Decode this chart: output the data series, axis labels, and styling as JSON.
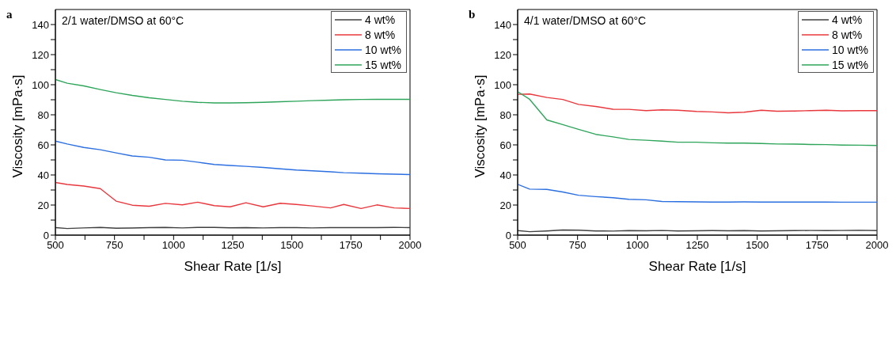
{
  "chart_data": [
    {
      "type": "line",
      "title": "a",
      "xlabel": "Shear Rate [1/s]",
      "ylabel": "Viscosity [mPa·s]",
      "annotations": [
        "2/1 water/DMSO at 60°C"
      ],
      "x": [
        500,
        550,
        620,
        690,
        757,
        825,
        897,
        965,
        1037,
        1102,
        1172,
        1239,
        1306,
        1379,
        1451,
        1519,
        1586,
        1664,
        1720,
        1793,
        1860,
        1933,
        2000
      ],
      "series": [
        {
          "name": "4 wt%",
          "color": "#404040",
          "values": [
            5.0,
            4.4,
            4.8,
            5.1,
            4.6,
            4.7,
            5.0,
            5.1,
            4.8,
            5.1,
            5.1,
            4.9,
            5.0,
            4.8,
            5.0,
            5.0,
            4.8,
            5.0,
            5.0,
            5.0,
            5.0,
            5.1,
            5.0
          ]
        },
        {
          "name": "8 wt%",
          "color": "#e8383d",
          "values": [
            35.0,
            33.7,
            32.6,
            30.9,
            22.6,
            19.9,
            19.2,
            21.1,
            20.1,
            21.9,
            19.6,
            18.8,
            21.5,
            18.8,
            21.2,
            20.4,
            19.4,
            18.1,
            20.4,
            17.7,
            20.1,
            18.1,
            17.7
          ]
        },
        {
          "name": "10 wt%",
          "color": "#2b6fe0",
          "values": [
            62.5,
            60.6,
            58.3,
            56.8,
            54.7,
            52.6,
            51.8,
            50.0,
            49.8,
            48.5,
            47.0,
            46.3,
            45.7,
            45.0,
            44.1,
            43.3,
            42.8,
            42.1,
            41.5,
            41.2,
            40.8,
            40.5,
            40.3
          ]
        },
        {
          "name": "15 wt%",
          "color": "#2ea55a",
          "values": [
            103.4,
            101.0,
            99.2,
            96.8,
            94.7,
            92.9,
            91.3,
            90.2,
            89.0,
            88.3,
            87.9,
            87.9,
            88.0,
            88.3,
            88.7,
            89.0,
            89.4,
            89.7,
            90.0,
            90.2,
            90.3,
            90.3,
            90.3
          ]
        }
      ],
      "xlim": [
        500,
        2000
      ],
      "xticks": [
        500,
        {
          "value": 625,
          "label": null
        },
        750,
        {
          "value": 875,
          "label": null
        },
        1000,
        {
          "value": 1125,
          "label": null
        },
        1250,
        {
          "value": 1375,
          "label": null
        },
        1500,
        {
          "value": 1625,
          "label": null
        },
        1750,
        {
          "value": 1875,
          "label": null
        },
        2000
      ],
      "ylim": [
        0,
        150
      ],
      "yticks": [
        0,
        {
          "value": 10,
          "label": null
        },
        20,
        {
          "value": 30,
          "label": null
        },
        40,
        {
          "value": 50,
          "label": null
        },
        60,
        {
          "value": 70,
          "label": null
        },
        80,
        {
          "value": 90,
          "label": null
        },
        100,
        {
          "value": 110,
          "label": null
        },
        120,
        {
          "value": 130,
          "label": null
        },
        140
      ],
      "grid": false,
      "legend": "top right",
      "marker": "none",
      "line_style": "solid"
    },
    {
      "type": "line",
      "title": "b",
      "xlabel": "Shear Rate [1/s]",
      "ylabel": "Viscosity [mPa·s]",
      "annotations": [
        "4/1 water/DMSO at 60°C"
      ],
      "x": [
        500,
        550,
        622,
        688,
        754,
        826,
        898,
        964,
        1036,
        1102,
        1169,
        1246,
        1312,
        1379,
        1445,
        1517,
        1583,
        1655,
        1721,
        1788,
        1854,
        1926,
        2000
      ],
      "series": [
        {
          "name": "4 wt%",
          "color": "#404040",
          "values": [
            3.0,
            2.3,
            2.8,
            3.4,
            3.3,
            2.8,
            2.7,
            3.0,
            2.9,
            3.1,
            2.8,
            2.9,
            3.0,
            2.9,
            3.0,
            2.8,
            2.9,
            3.0,
            3.1,
            3.0,
            3.1,
            3.2,
            3.0
          ]
        },
        {
          "name": "8 wt%",
          "color": "#e8383d",
          "values": [
            93.6,
            93.8,
            91.5,
            90.2,
            86.9,
            85.5,
            83.7,
            83.6,
            82.8,
            83.3,
            83.0,
            82.2,
            81.9,
            81.3,
            81.7,
            83.0,
            82.4,
            82.5,
            82.8,
            83.0,
            82.6,
            82.8,
            82.8
          ]
        },
        {
          "name": "10 wt%",
          "color": "#2b6fe0",
          "values": [
            33.8,
            30.6,
            30.4,
            28.7,
            26.5,
            25.6,
            24.9,
            23.8,
            23.5,
            22.4,
            22.2,
            22.1,
            22.0,
            22.0,
            22.1,
            22.0,
            22.0,
            22.0,
            22.0,
            22.0,
            21.9,
            21.9,
            21.9
          ]
        },
        {
          "name": "15 wt%",
          "color": "#2ea55a",
          "values": [
            95.4,
            90.3,
            76.6,
            73.5,
            70.3,
            67.0,
            65.3,
            63.6,
            63.1,
            62.5,
            61.8,
            61.8,
            61.4,
            61.2,
            61.2,
            60.9,
            60.6,
            60.5,
            60.3,
            60.2,
            59.9,
            59.8,
            59.6
          ]
        }
      ],
      "xlim": [
        500,
        2000
      ],
      "xticks": [
        500,
        {
          "value": 625,
          "label": null
        },
        750,
        {
          "value": 875,
          "label": null
        },
        1000,
        {
          "value": 1125,
          "label": null
        },
        1250,
        {
          "value": 1375,
          "label": null
        },
        1500,
        {
          "value": 1625,
          "label": null
        },
        1750,
        {
          "value": 1875,
          "label": null
        },
        2000
      ],
      "ylim": [
        0,
        150
      ],
      "yticks": [
        0,
        {
          "value": 10,
          "label": null
        },
        20,
        {
          "value": 30,
          "label": null
        },
        40,
        {
          "value": 50,
          "label": null
        },
        60,
        {
          "value": 70,
          "label": null
        },
        80,
        {
          "value": 90,
          "label": null
        },
        100,
        {
          "value": 110,
          "label": null
        },
        120,
        {
          "value": 130,
          "label": null
        },
        140
      ],
      "grid": false,
      "legend": "top right",
      "marker": "none",
      "line_style": "solid"
    }
  ]
}
